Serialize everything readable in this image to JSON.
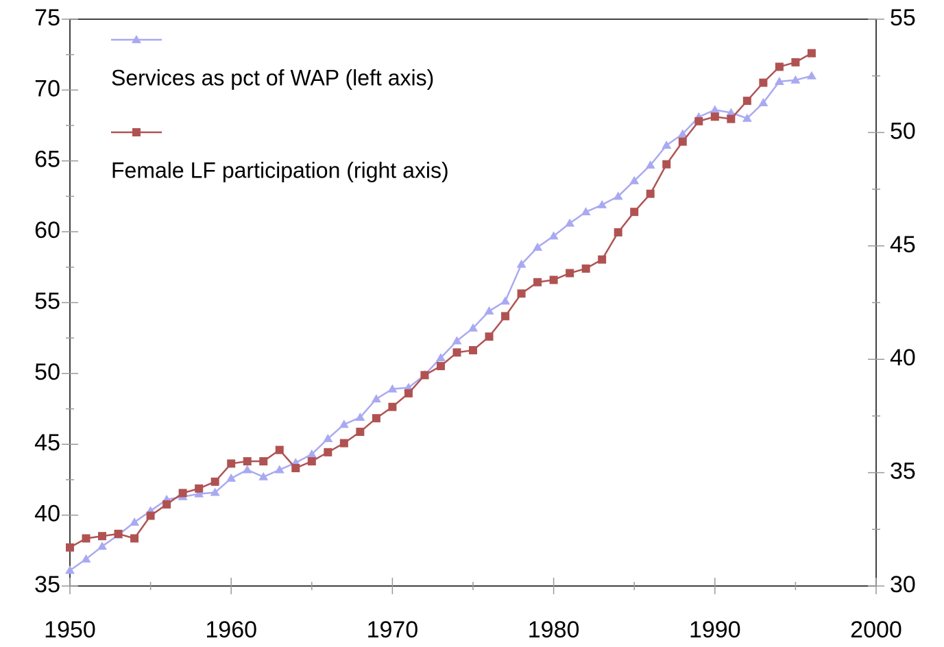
{
  "chart_data": {
    "type": "line",
    "x": [
      1950,
      1951,
      1952,
      1953,
      1954,
      1955,
      1956,
      1957,
      1958,
      1959,
      1960,
      1961,
      1962,
      1963,
      1964,
      1965,
      1966,
      1967,
      1968,
      1969,
      1970,
      1971,
      1972,
      1973,
      1974,
      1975,
      1976,
      1977,
      1978,
      1979,
      1980,
      1981,
      1982,
      1983,
      1984,
      1985,
      1986,
      1987,
      1988,
      1989,
      1990,
      1991,
      1992,
      1993,
      1994,
      1995,
      1996
    ],
    "series": [
      {
        "name": "Services as pct of WAP (left axis)",
        "color": "#a9a9f2",
        "marker": "triangle",
        "axis": "y",
        "values": [
          36.1,
          36.9,
          37.8,
          38.6,
          39.5,
          40.3,
          41.1,
          41.3,
          41.5,
          41.6,
          42.6,
          43.2,
          42.7,
          43.2,
          43.7,
          44.3,
          45.4,
          46.4,
          46.9,
          48.2,
          48.9,
          49.0,
          49.9,
          51.1,
          52.3,
          53.2,
          54.4,
          55.1,
          57.7,
          58.9,
          59.7,
          60.6,
          61.4,
          61.9,
          62.5,
          63.6,
          64.7,
          66.1,
          66.9,
          68.1,
          68.6,
          68.4,
          68.0,
          69.1,
          70.6,
          70.7,
          71.0
        ]
      },
      {
        "name": "Female LF participation (right axis)",
        "color": "#b05252",
        "marker": "square",
        "axis": "y2",
        "values": [
          31.7,
          32.1,
          32.2,
          32.3,
          32.1,
          33.1,
          33.6,
          34.1,
          34.3,
          34.6,
          35.4,
          35.5,
          35.5,
          36.0,
          35.2,
          35.5,
          35.9,
          36.3,
          36.8,
          37.4,
          37.9,
          38.5,
          39.3,
          39.7,
          40.3,
          40.4,
          41.0,
          41.9,
          42.9,
          43.4,
          43.5,
          43.8,
          44.0,
          44.4,
          45.6,
          46.5,
          47.3,
          48.6,
          49.6,
          50.5,
          50.7,
          50.6,
          51.4,
          52.2,
          52.9,
          53.1,
          53.5
        ]
      }
    ],
    "xlim": [
      1950,
      2000
    ],
    "xticks": [
      1950,
      1960,
      1970,
      1980,
      1990,
      2000
    ],
    "ylim": [
      35,
      75
    ],
    "yticks": [
      35,
      40,
      45,
      50,
      55,
      60,
      65,
      70,
      75
    ],
    "y2lim": [
      30,
      55
    ],
    "y2ticks": [
      30,
      35,
      40,
      45,
      50,
      55
    ],
    "legend": "upper left"
  }
}
